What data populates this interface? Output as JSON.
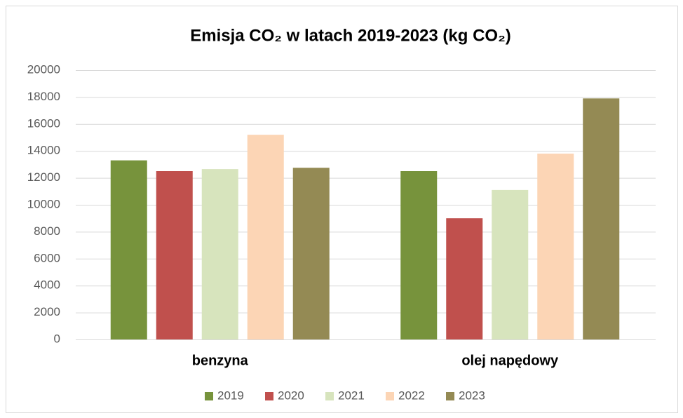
{
  "chart_data": {
    "type": "bar",
    "title": "Emisja CO₂ w latach 2019-2023 (kg CO₂)",
    "categories": [
      "benzyna",
      "olej napędowy"
    ],
    "series": [
      {
        "name": "2019",
        "color": "#77933c",
        "values": [
          13300,
          12500
        ]
      },
      {
        "name": "2020",
        "color": "#c0504d",
        "values": [
          12500,
          9000
        ]
      },
      {
        "name": "2021",
        "color": "#d7e4bd",
        "values": [
          12650,
          11100
        ]
      },
      {
        "name": "2022",
        "color": "#fcd5b5",
        "values": [
          15200,
          13800
        ]
      },
      {
        "name": "2023",
        "color": "#948a54",
        "values": [
          12750,
          17900
        ]
      }
    ],
    "ylim": [
      0,
      20000
    ],
    "yticks": [
      0,
      2000,
      4000,
      6000,
      8000,
      10000,
      12000,
      14000,
      16000,
      18000,
      20000
    ],
    "grid": true,
    "legend": "bottom"
  }
}
